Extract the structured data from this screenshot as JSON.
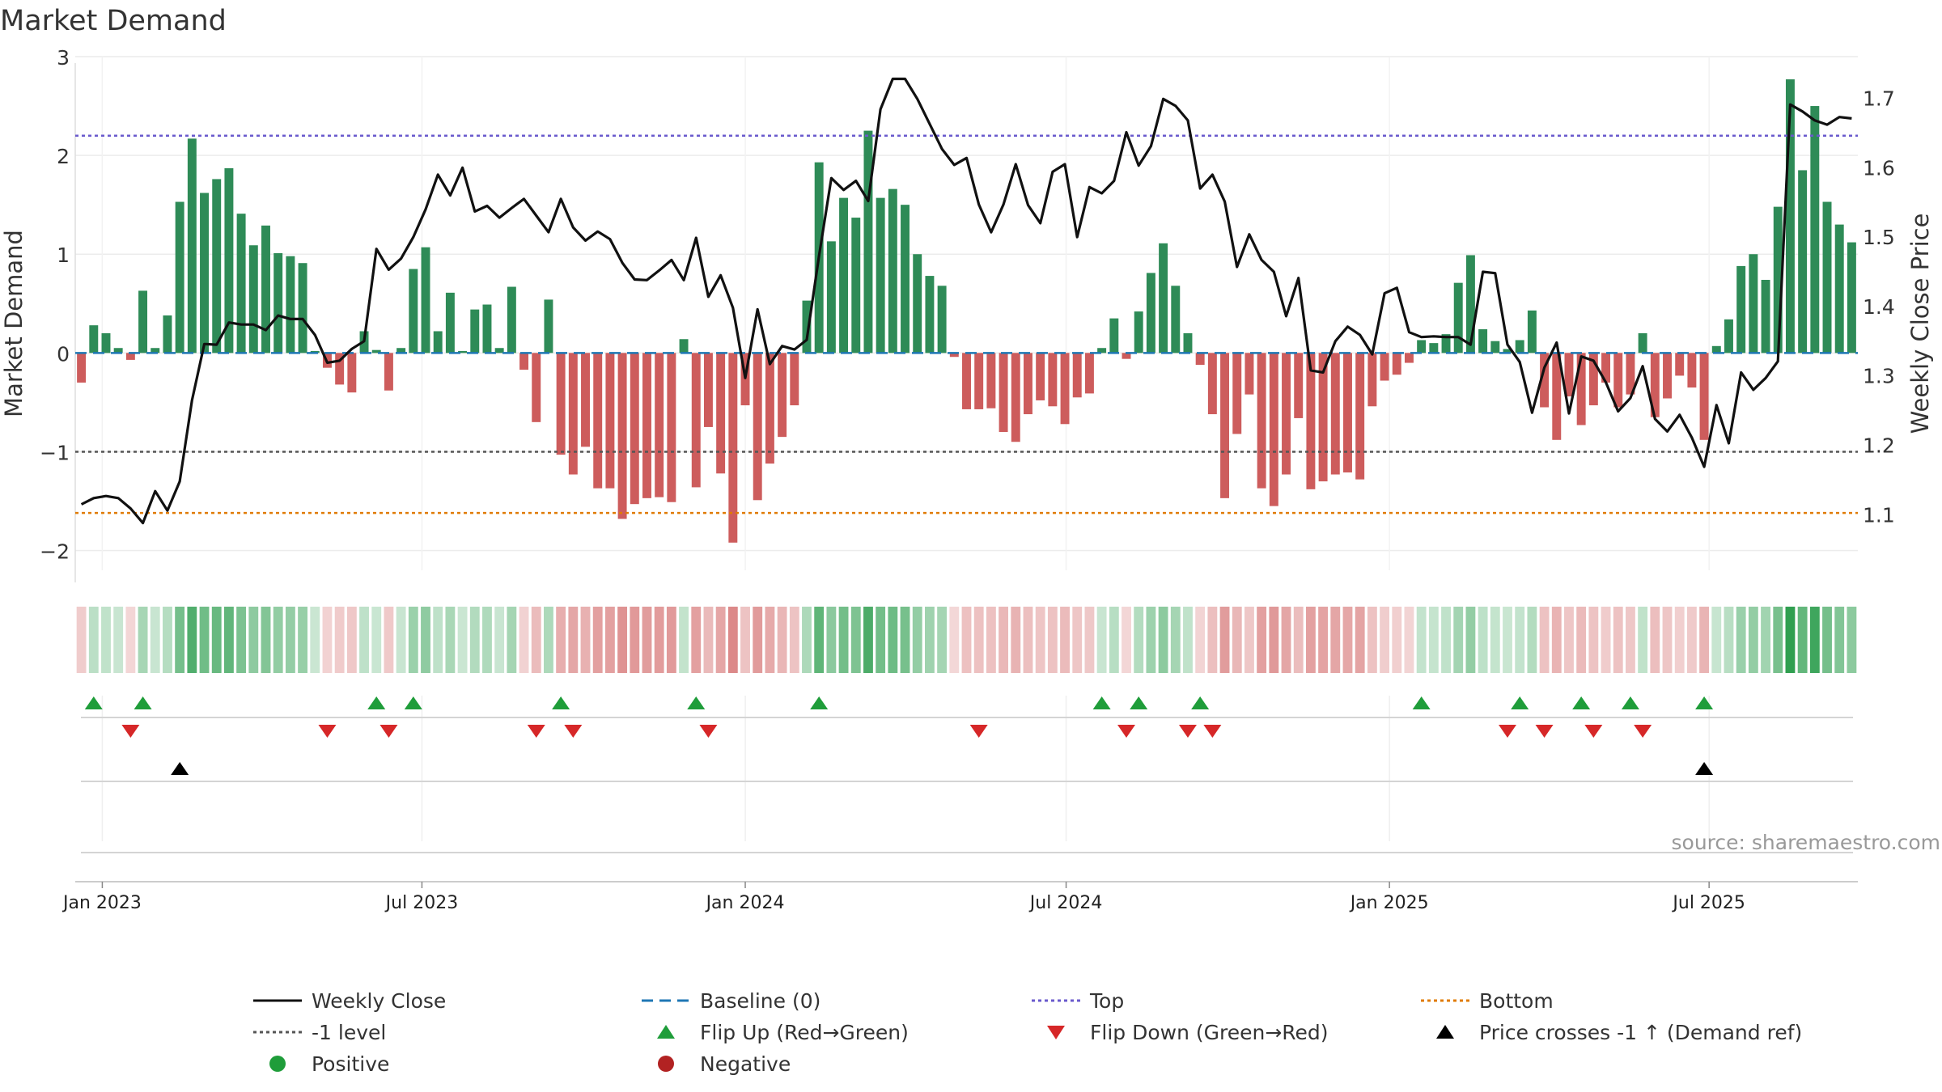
{
  "chart_data": {
    "type": "bar",
    "title": "Market Demand",
    "ylabel": "Market Demand",
    "y2label": "Weekly Close Price",
    "source": "source: sharemaestro.com",
    "ylim": [
      -2.2,
      3.0
    ],
    "y2lim": [
      1.02,
      1.76
    ],
    "yticks": [
      3,
      2,
      1,
      0,
      -1,
      -2
    ],
    "ytick_labels": [
      "3",
      "2",
      "1",
      "0",
      "−1",
      "−2"
    ],
    "y2ticks": [
      1.7,
      1.6,
      1.5,
      1.4,
      1.3,
      1.2,
      1.1
    ],
    "y2tick_labels": [
      "1.7",
      "1.6",
      "1.5",
      "1.4",
      "1.3",
      "1.2",
      "1.1"
    ],
    "x_start": "2022-12-26",
    "x_step_days": 7,
    "x_range_index": [
      -0.5,
      144.5
    ],
    "xtick_index": [
      1.7,
      27.7,
      54.0,
      80.1,
      106.4,
      132.4
    ],
    "xtick_labels": [
      "Jan 2023",
      "Jul 2023",
      "Jan 2024",
      "Jul 2024",
      "Jan 2025",
      "Jul 2025"
    ],
    "reference_lines": {
      "top": 2.2,
      "minus_one": -1.0,
      "bottom": -1.62,
      "baseline": 0
    },
    "demand": [
      -0.3,
      0.28,
      0.2,
      0.05,
      -0.07,
      0.63,
      0.05,
      0.38,
      1.53,
      2.17,
      1.62,
      1.76,
      1.87,
      1.41,
      1.09,
      1.29,
      1.01,
      0.98,
      0.91,
      0.02,
      -0.15,
      -0.32,
      -0.4,
      0.22,
      0.03,
      -0.38,
      0.05,
      0.85,
      1.07,
      0.22,
      0.61,
      0.02,
      0.44,
      0.49,
      0.05,
      0.67,
      -0.17,
      -0.7,
      0.54,
      -1.03,
      -1.23,
      -0.95,
      -1.37,
      -1.37,
      -1.68,
      -1.53,
      -1.47,
      -1.46,
      -1.51,
      0.14,
      -1.36,
      -0.75,
      -1.22,
      -1.92,
      -0.53,
      -1.49,
      -1.12,
      -0.85,
      -0.53,
      0.53,
      1.93,
      1.13,
      1.57,
      1.37,
      2.25,
      1.57,
      1.66,
      1.5,
      1.0,
      0.78,
      0.68,
      -0.04,
      -0.57,
      -0.57,
      -0.56,
      -0.8,
      -0.9,
      -0.62,
      -0.48,
      -0.54,
      -0.72,
      -0.45,
      -0.41,
      0.05,
      0.35,
      -0.06,
      0.42,
      0.81,
      1.11,
      0.68,
      0.2,
      -0.12,
      -0.62,
      -1.47,
      -0.82,
      -0.42,
      -1.37,
      -1.55,
      -1.23,
      -0.66,
      -1.38,
      -1.3,
      -1.23,
      -1.21,
      -1.28,
      -0.54,
      -0.28,
      -0.22,
      -0.1,
      0.13,
      0.1,
      0.19,
      0.71,
      0.99,
      0.24,
      0.12,
      0.04,
      0.13,
      0.43,
      -0.55,
      -0.88,
      -0.44,
      -0.73,
      -0.53,
      -0.3,
      -0.55,
      -0.42,
      0.2,
      -0.65,
      -0.46,
      -0.23,
      -0.35,
      -0.88,
      0.07,
      0.34,
      0.88,
      1.0,
      0.74,
      1.48,
      2.77,
      1.85,
      2.5,
      1.53,
      1.3,
      1.12
    ],
    "weekly_close": [
      1.115,
      1.124,
      1.127,
      1.124,
      1.109,
      1.088,
      1.134,
      1.106,
      1.148,
      1.265,
      1.346,
      1.345,
      1.377,
      1.374,
      1.374,
      1.366,
      1.387,
      1.382,
      1.382,
      1.359,
      1.319,
      1.322,
      1.339,
      1.35,
      1.483,
      1.453,
      1.469,
      1.5,
      1.54,
      1.59,
      1.56,
      1.6,
      1.537,
      1.545,
      1.528,
      1.542,
      1.555,
      1.531,
      1.507,
      1.555,
      1.514,
      1.495,
      1.508,
      1.497,
      1.463,
      1.439,
      1.438,
      1.452,
      1.467,
      1.438,
      1.499,
      1.414,
      1.445,
      1.398,
      1.297,
      1.396,
      1.317,
      1.343,
      1.338,
      1.352,
      1.473,
      1.585,
      1.568,
      1.581,
      1.552,
      1.684,
      1.728,
      1.728,
      1.699,
      1.663,
      1.627,
      1.604,
      1.614,
      1.547,
      1.507,
      1.547,
      1.605,
      1.546,
      1.52,
      1.594,
      1.605,
      1.5,
      1.572,
      1.563,
      1.581,
      1.651,
      1.603,
      1.631,
      1.699,
      1.689,
      1.668,
      1.57,
      1.59,
      1.551,
      1.457,
      1.504,
      1.467,
      1.45,
      1.386,
      1.441,
      1.308,
      1.305,
      1.35,
      1.371,
      1.359,
      1.331,
      1.419,
      1.427,
      1.363,
      1.356,
      1.357,
      1.356,
      1.356,
      1.345,
      1.45,
      1.448,
      1.345,
      1.32,
      1.247,
      1.312,
      1.348,
      1.246,
      1.328,
      1.322,
      1.291,
      1.249,
      1.268,
      1.314,
      1.238,
      1.22,
      1.244,
      1.211,
      1.169,
      1.258,
      1.203,
      1.305,
      1.28,
      1.297,
      1.321,
      1.691,
      1.681,
      1.668,
      1.662,
      1.673,
      1.671
    ]
  },
  "markers": {
    "flip_up": [
      1,
      5,
      24,
      27,
      39,
      50,
      60,
      83,
      86,
      91,
      109,
      117,
      122,
      126,
      132
    ],
    "flip_down": [
      4,
      20,
      25,
      37,
      40,
      51,
      73,
      85,
      90,
      92,
      116,
      119,
      123,
      127
    ],
    "price_cross": [
      8,
      132
    ]
  },
  "colors": {
    "positive_bar": "#2e8b57",
    "negative_bar": "#cd5c5c",
    "close_line": "#111111",
    "baseline": "#1f77b4",
    "top_line": "#6a5acd",
    "minus_one_line": "#555555",
    "bottom_line": "#e07b00",
    "flip_up": "#1f9d3a",
    "flip_down": "#d62728",
    "price_cross": "#000000",
    "positive_dot": "#1f9d3a",
    "negative_dot": "#b22222"
  },
  "legend": [
    {
      "label": "Weekly Close",
      "kind": "line-solid"
    },
    {
      "label": "Baseline (0)",
      "kind": "line-dashed-blue"
    },
    {
      "label": "Top",
      "kind": "line-dotted-purple"
    },
    {
      "label": "Bottom",
      "kind": "line-dotted-orange"
    },
    {
      "label": "-1 level",
      "kind": "line-dotted-gray"
    },
    {
      "label": "Flip Up (Red→Green)",
      "kind": "triangle-up-green"
    },
    {
      "label": "Flip Down (Green→Red)",
      "kind": "triangle-down-red"
    },
    {
      "label": "Price crosses -1 ↑ (Demand ref)",
      "kind": "triangle-up-black"
    },
    {
      "label": "Positive",
      "kind": "dot-green"
    },
    {
      "label": "Negative",
      "kind": "dot-red"
    }
  ]
}
